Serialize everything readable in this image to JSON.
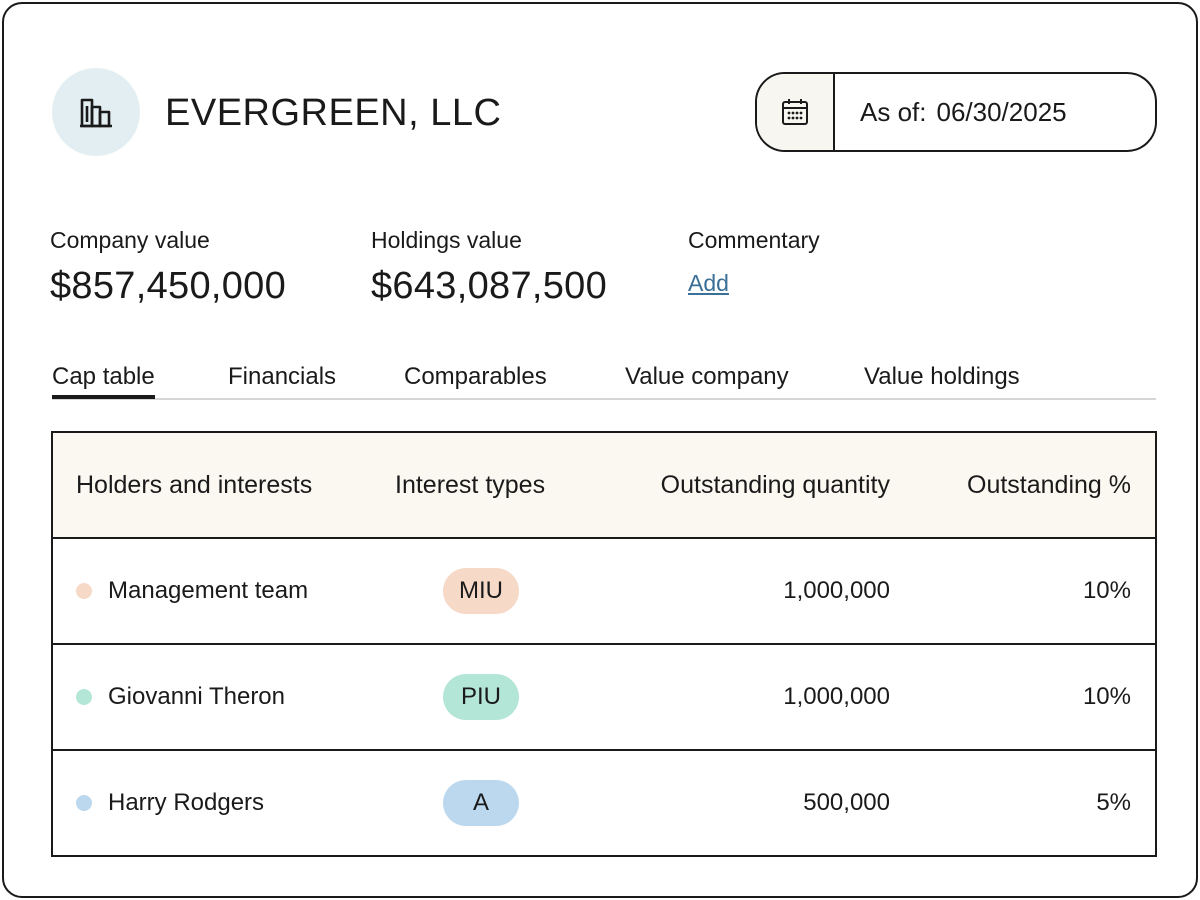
{
  "header": {
    "company_name": "EVERGREEN, LLC",
    "as_of_label": "As of:",
    "as_of_date": "06/30/2025"
  },
  "stats": {
    "company_value_label": "Company value",
    "company_value": "$857,450,000",
    "holdings_value_label": "Holdings value",
    "holdings_value": "$643,087,500",
    "commentary_label": "Commentary",
    "commentary_link": "Add"
  },
  "tabs": [
    {
      "label": "Cap table",
      "active": true
    },
    {
      "label": "Financials",
      "active": false
    },
    {
      "label": "Comparables",
      "active": false
    },
    {
      "label": "Value company",
      "active": false
    },
    {
      "label": "Value holdings",
      "active": false
    }
  ],
  "table": {
    "headers": [
      "Holders and interests",
      "Interest types",
      "Outstanding quantity",
      "Outstanding %"
    ],
    "rows": [
      {
        "holder": "Management team",
        "type": "MIU",
        "quantity": "1,000,000",
        "percent": "10%",
        "color": "#f7d9c8"
      },
      {
        "holder": "Giovanni Theron",
        "type": "PIU",
        "quantity": "1,000,000",
        "percent": "10%",
        "color": "#b4e6d8"
      },
      {
        "holder": "Harry Rodgers",
        "type": "A",
        "quantity": "500,000",
        "percent": "5%",
        "color": "#bcd8ee"
      }
    ]
  },
  "icons": {
    "logo": "building-chart-icon",
    "calendar": "calendar-icon"
  },
  "colors": {
    "logo_bg": "#e3eef3",
    "link": "#3a6f98",
    "header_bg": "#fbf8f1"
  }
}
